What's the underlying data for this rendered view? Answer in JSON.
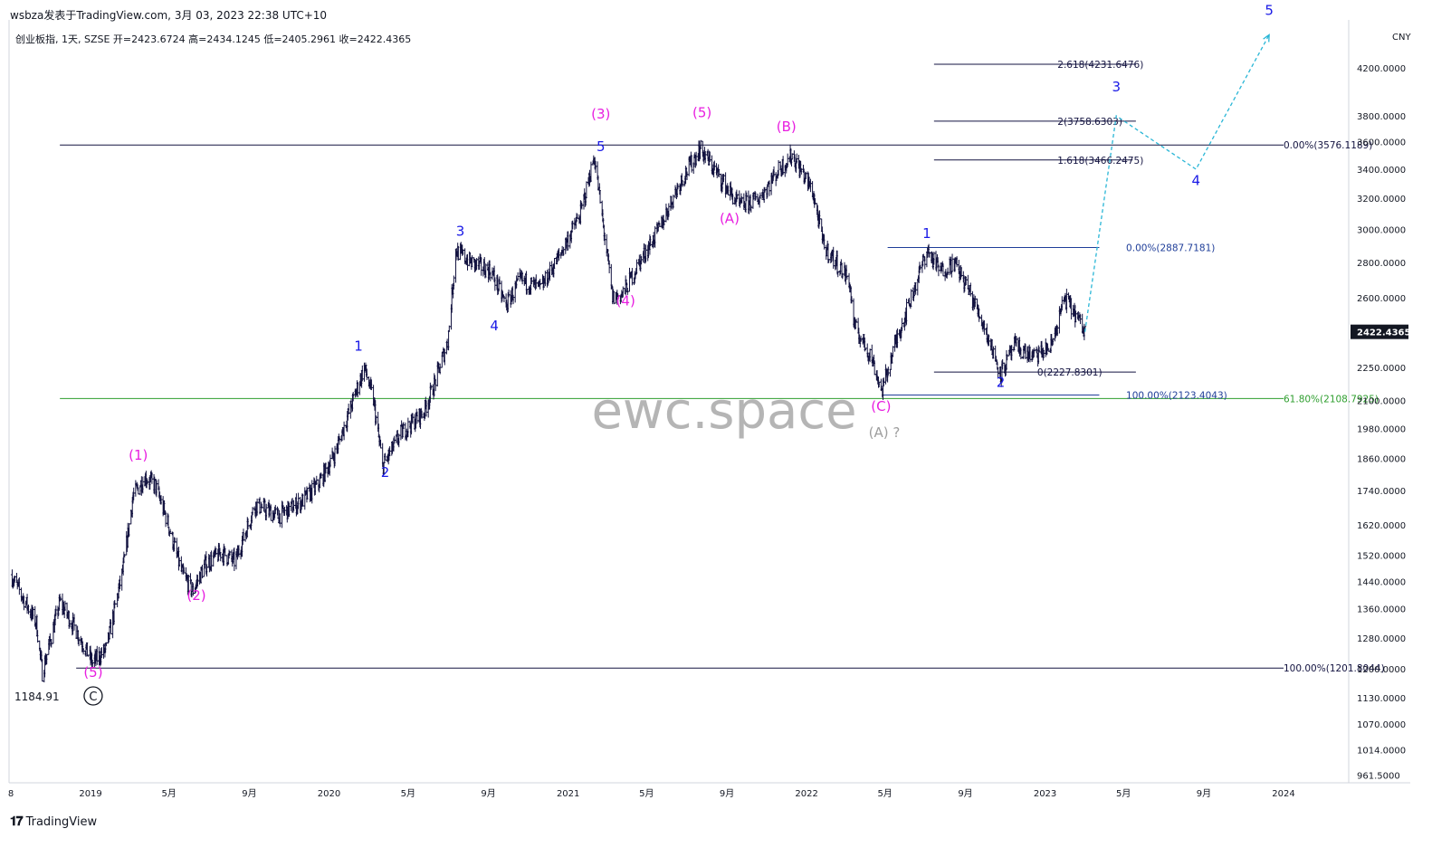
{
  "header": {
    "publisher": "wsbza发表于TradingView.com,",
    "timestamp": "3月 03, 2023 22:38 UTC+10"
  },
  "symbol_line": "创业板指, 1天, SZSE  开=2423.6724  高=2434.1245  低=2405.2961  收=2422.4365",
  "footer": {
    "brand": "TradingView"
  },
  "watermark": "ewc.space",
  "currency": "CNY",
  "last_price": "2422.4365",
  "colors": {
    "candle": "#131340",
    "magenta": "#e81ee0",
    "blue": "#1a1ae6",
    "gray": "#9e9e9e",
    "green_line": "#2e9e2e",
    "navy_line": "#1f3e99",
    "cyan_projection": "#29b6d6"
  },
  "chart_data": {
    "type": "ohlc",
    "y_scale": "log",
    "ylim": [
      930,
      5000
    ],
    "y_ticks": [
      "4200.0000",
      "3800.0000",
      "3600.0000",
      "3400.0000",
      "3200.0000",
      "3000.0000",
      "2800.0000",
      "2600.0000",
      "2250.0000",
      "2100.0000",
      "1980.0000",
      "1860.0000",
      "1740.0000",
      "1620.0000",
      "1520.0000",
      "1440.0000",
      "1360.0000",
      "1280.0000",
      "1200.0000",
      "1130.0000",
      "1070.0000",
      "1014.0000",
      "961.5000"
    ],
    "x_ticks": [
      {
        "label": "8",
        "date": "2018-09-01"
      },
      {
        "label": "2019",
        "date": "2019-01-01"
      },
      {
        "label": "5月",
        "date": "2019-05-01"
      },
      {
        "label": "9月",
        "date": "2019-09-01"
      },
      {
        "label": "2020",
        "date": "2020-01-01"
      },
      {
        "label": "5月",
        "date": "2020-05-01"
      },
      {
        "label": "9月",
        "date": "2020-09-01"
      },
      {
        "label": "2021",
        "date": "2021-01-01"
      },
      {
        "label": "5月",
        "date": "2021-05-01"
      },
      {
        "label": "9月",
        "date": "2021-09-01"
      },
      {
        "label": "2022",
        "date": "2022-01-01"
      },
      {
        "label": "5月",
        "date": "2022-05-01"
      },
      {
        "label": "9月",
        "date": "2022-09-01"
      },
      {
        "label": "2023",
        "date": "2023-01-01"
      },
      {
        "label": "5月",
        "date": "2023-05-01"
      },
      {
        "label": "9月",
        "date": "2023-09-01"
      },
      {
        "label": "2024",
        "date": "2024-01-01"
      }
    ],
    "price_path": [
      [
        "2018-09-01",
        1460
      ],
      [
        "2018-10-10",
        1320
      ],
      [
        "2018-10-19",
        1190
      ],
      [
        "2018-11-15",
        1380
      ],
      [
        "2018-12-10",
        1300
      ],
      [
        "2019-01-04",
        1215
      ],
      [
        "2019-01-25",
        1250
      ],
      [
        "2019-02-20",
        1480
      ],
      [
        "2019-03-07",
        1720
      ],
      [
        "2019-03-25",
        1790
      ],
      [
        "2019-04-10",
        1760
      ],
      [
        "2019-04-30",
        1620
      ],
      [
        "2019-05-20",
        1470
      ],
      [
        "2019-06-06",
        1410
      ],
      [
        "2019-06-25",
        1490
      ],
      [
        "2019-07-20",
        1530
      ],
      [
        "2019-08-10",
        1500
      ],
      [
        "2019-09-10",
        1690
      ],
      [
        "2019-10-15",
        1650
      ],
      [
        "2019-11-20",
        1700
      ],
      [
        "2019-12-15",
        1760
      ],
      [
        "2020-01-10",
        1880
      ],
      [
        "2020-02-24",
        2250
      ],
      [
        "2020-03-09",
        2100
      ],
      [
        "2020-03-23",
        1830
      ],
      [
        "2020-04-20",
        1960
      ],
      [
        "2020-05-25",
        2050
      ],
      [
        "2020-06-10",
        2170
      ],
      [
        "2020-07-01",
        2380
      ],
      [
        "2020-07-13",
        2870
      ],
      [
        "2020-08-05",
        2800
      ],
      [
        "2020-09-05",
        2750
      ],
      [
        "2020-09-28",
        2560
      ],
      [
        "2020-10-20",
        2700
      ],
      [
        "2020-11-20",
        2650
      ],
      [
        "2020-12-20",
        2850
      ],
      [
        "2021-01-20",
        3100
      ],
      [
        "2021-02-10",
        3490
      ],
      [
        "2021-03-10",
        2600
      ],
      [
        "2021-03-25",
        2620
      ],
      [
        "2021-04-20",
        2800
      ],
      [
        "2021-05-20",
        3000
      ],
      [
        "2021-06-20",
        3300
      ],
      [
        "2021-07-22",
        3550
      ],
      [
        "2021-08-20",
        3350
      ],
      [
        "2021-09-20",
        3150
      ],
      [
        "2021-10-20",
        3200
      ],
      [
        "2021-11-20",
        3400
      ],
      [
        "2021-12-10",
        3500
      ],
      [
        "2022-01-10",
        3250
      ],
      [
        "2022-01-27",
        2900
      ],
      [
        "2022-03-07",
        2700
      ],
      [
        "2022-03-15",
        2450
      ],
      [
        "2022-04-10",
        2300
      ],
      [
        "2022-04-26",
        2140
      ],
      [
        "2022-05-20",
        2400
      ],
      [
        "2022-06-10",
        2600
      ],
      [
        "2022-07-04",
        2870
      ],
      [
        "2022-07-25",
        2750
      ],
      [
        "2022-08-15",
        2800
      ],
      [
        "2022-09-05",
        2650
      ],
      [
        "2022-09-30",
        2450
      ],
      [
        "2022-10-25",
        2220
      ],
      [
        "2022-11-15",
        2350
      ],
      [
        "2022-12-15",
        2300
      ],
      [
        "2023-01-10",
        2350
      ],
      [
        "2023-01-31",
        2600
      ],
      [
        "2023-02-15",
        2520
      ],
      [
        "2023-03-03",
        2422
      ]
    ],
    "projection": [
      [
        "2023-03-03",
        2422
      ],
      [
        "2023-04-20",
        3800
      ],
      [
        "2023-08-20",
        3400
      ],
      [
        "2023-12-10",
        4500
      ]
    ],
    "horizontal_levels": [
      {
        "price": 3576,
        "x_from": "2018-11-15",
        "x_to": "2024-01-01",
        "color_key": "candle",
        "label": "0.00%(3576.1189)",
        "label_date": "2024-01-01"
      },
      {
        "price": 2108,
        "x_from": "2018-11-15",
        "x_to": "2024-01-01",
        "color_key": "green_line",
        "label": "61.80%(2108.7925)",
        "label_date": "2024-01-01"
      },
      {
        "price": 1201.8,
        "x_from": "2018-12-10",
        "x_to": "2024-01-01",
        "color_key": "candle",
        "label": "100.00%(1201.8044)",
        "label_date": "2024-01-01"
      },
      {
        "price": 4231.6,
        "x_from": "2022-07-15",
        "x_to": "2023-05-20",
        "color_key": "candle",
        "label": "2.618(4231.6476)",
        "label_date": "2023-01-20"
      },
      {
        "price": 3758.6,
        "x_from": "2022-07-15",
        "x_to": "2023-05-20",
        "color_key": "candle",
        "label": "2(3758.6303)",
        "label_date": "2023-01-20"
      },
      {
        "price": 3466.2,
        "x_from": "2022-07-15",
        "x_to": "2023-05-15",
        "color_key": "candle",
        "label": "1.618(3466.2475)",
        "label_date": "2023-01-20"
      },
      {
        "price": 2227.8,
        "x_from": "2022-07-15",
        "x_to": "2023-05-20",
        "color_key": "candle",
        "label": "0(2227.8301)",
        "label_date": "2022-12-20"
      },
      {
        "price": 2887.7,
        "x_from": "2022-05-05",
        "x_to": "2023-03-25",
        "color_key": "navy_line",
        "label": "0.00%(2887.7181)",
        "label_date": "2023-05-05"
      },
      {
        "price": 2123.4,
        "x_from": "2022-04-26",
        "x_to": "2023-03-25",
        "color_key": "navy_line",
        "label": "100.00%(2123.4043)",
        "label_date": "2023-05-05"
      }
    ],
    "wave_labels": [
      {
        "text": "(5)",
        "date": "2019-01-05",
        "price": 1180,
        "color_key": "magenta"
      },
      {
        "text": "(1)",
        "date": "2019-03-15",
        "price": 1855,
        "color_key": "magenta"
      },
      {
        "text": "(2)",
        "date": "2019-06-12",
        "price": 1385,
        "color_key": "magenta"
      },
      {
        "text": "1",
        "date": "2020-02-15",
        "price": 2330,
        "color_key": "blue"
      },
      {
        "text": "2",
        "date": "2020-03-27",
        "price": 1790,
        "color_key": "blue"
      },
      {
        "text": "3",
        "date": "2020-07-20",
        "price": 2960,
        "color_key": "blue"
      },
      {
        "text": "4",
        "date": "2020-09-10",
        "price": 2430,
        "color_key": "blue"
      },
      {
        "text": "(3)",
        "date": "2021-02-20",
        "price": 3780,
        "color_key": "magenta"
      },
      {
        "text": "5",
        "date": "2021-02-20",
        "price": 3530,
        "color_key": "blue"
      },
      {
        "text": "(4)",
        "date": "2021-03-30",
        "price": 2560,
        "color_key": "magenta"
      },
      {
        "text": "(5)",
        "date": "2021-07-25",
        "price": 3790,
        "color_key": "magenta"
      },
      {
        "text": "(A)",
        "date": "2021-09-05",
        "price": 3040,
        "color_key": "magenta"
      },
      {
        "text": "(B)",
        "date": "2021-12-01",
        "price": 3680,
        "color_key": "magenta"
      },
      {
        "text": "(C)",
        "date": "2022-04-25",
        "price": 2055,
        "color_key": "magenta"
      },
      {
        "text": "(A) ?",
        "date": "2022-04-30",
        "price": 1945,
        "color_key": "gray"
      },
      {
        "text": "1",
        "date": "2022-07-04",
        "price": 2945,
        "color_key": "blue"
      },
      {
        "text": "2",
        "date": "2022-10-25",
        "price": 2160,
        "color_key": "blue"
      },
      {
        "text": "3",
        "date": "2023-04-20",
        "price": 4000,
        "color_key": "blue"
      },
      {
        "text": "4",
        "date": "2023-08-20",
        "price": 3290,
        "color_key": "blue"
      },
      {
        "text": "5",
        "date": "2023-12-10",
        "price": 4690,
        "color_key": "blue"
      }
    ],
    "annotations": {
      "low_value": "1184.91",
      "circle_label": "C"
    }
  }
}
